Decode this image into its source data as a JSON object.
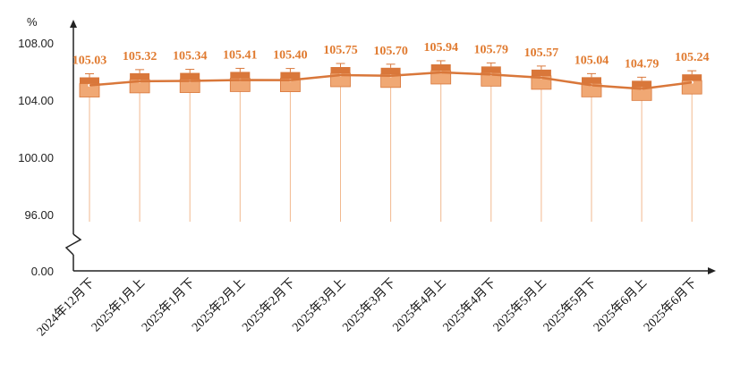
{
  "chart_data": {
    "type": "line",
    "unit_label": "%",
    "y_ticks": [
      "108.00",
      "104.00",
      "100.00",
      "96.00",
      "0.00"
    ],
    "y_break": {
      "from": 0,
      "to": 96
    },
    "ylim": [
      96,
      108
    ],
    "categories": [
      "2024年12月下",
      "2025年1月上",
      "2025年1月下",
      "2025年2月上",
      "2025年2月下",
      "2025年3月上",
      "2025年3月下",
      "2025年4月上",
      "2025年4月下",
      "2025年5月上",
      "2025年5月下",
      "2025年6月上",
      "2025年6月下"
    ],
    "series": [
      {
        "values": [
          105.03,
          105.32,
          105.34,
          105.41,
          105.4,
          105.75,
          105.7,
          105.94,
          105.79,
          105.57,
          105.04,
          104.79,
          105.24
        ],
        "data_labels": [
          "105.03",
          "105.32",
          "105.34",
          "105.41",
          "105.40",
          "105.75",
          "105.70",
          "105.94",
          "105.79",
          "105.57",
          "105.04",
          "104.79",
          "105.24"
        ]
      }
    ],
    "grid": false,
    "legend": "none",
    "colors": {
      "line": "#d9773a",
      "box": "#f0a874",
      "box_dark": "#d9773a",
      "label": "#e07a2f",
      "axis": "#222222"
    }
  }
}
